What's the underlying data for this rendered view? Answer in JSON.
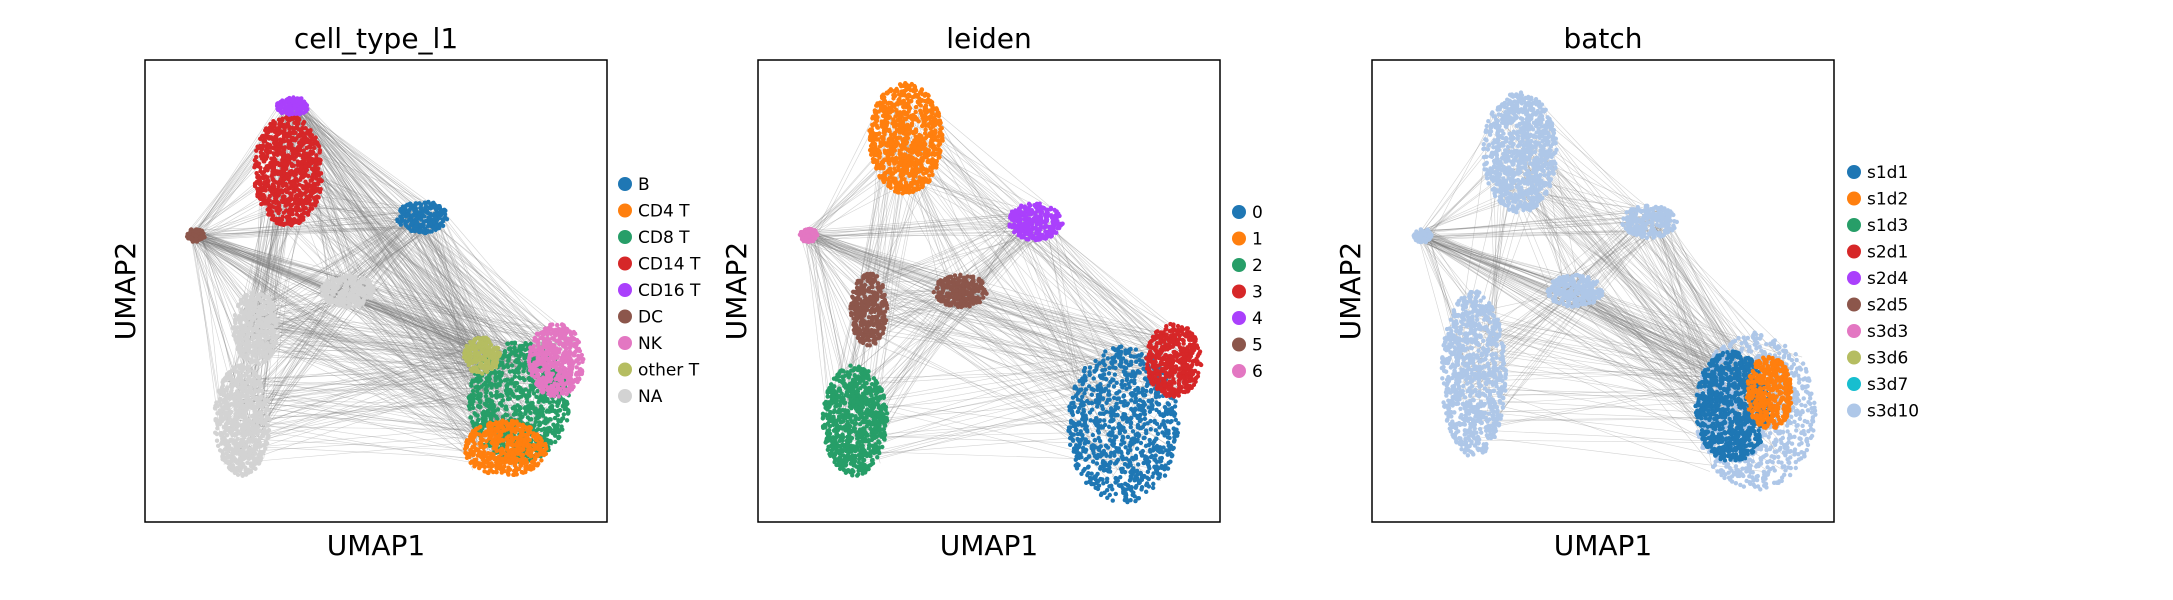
{
  "chart_data": [
    {
      "type": "scatter",
      "title": "cell_type_l1",
      "xlabel": "UMAP1",
      "ylabel": "UMAP2",
      "grid": false,
      "legend_placement": "right",
      "edges_color": "#808080",
      "legend": [
        {
          "label": "B",
          "color": "#1f77b4"
        },
        {
          "label": "CD4 T",
          "color": "#ff7f0e"
        },
        {
          "label": "CD8 T",
          "color": "#279e68"
        },
        {
          "label": "CD14 T",
          "color": "#d62728"
        },
        {
          "label": "CD16 T",
          "color": "#aa40fc"
        },
        {
          "label": "DC",
          "color": "#8c564b"
        },
        {
          "label": "NK",
          "color": "#e377c2"
        },
        {
          "label": "other T",
          "color": "#b5bd61"
        },
        {
          "label": "NA",
          "color": "#d3d3d3"
        }
      ],
      "clusters": [
        {
          "category": "CD16 T",
          "x": 0.32,
          "y": 0.9,
          "rx": 0.035,
          "ry": 0.02
        },
        {
          "category": "CD14 T",
          "x": 0.31,
          "y": 0.76,
          "rx": 0.075,
          "ry": 0.12
        },
        {
          "category": "B",
          "x": 0.6,
          "y": 0.66,
          "rx": 0.055,
          "ry": 0.035
        },
        {
          "category": "DC",
          "x": 0.11,
          "y": 0.62,
          "rx": 0.02,
          "ry": 0.015
        },
        {
          "category": "NA",
          "x": 0.44,
          "y": 0.5,
          "rx": 0.06,
          "ry": 0.035
        },
        {
          "category": "NA",
          "x": 0.24,
          "y": 0.42,
          "rx": 0.05,
          "ry": 0.08
        },
        {
          "category": "NA",
          "x": 0.21,
          "y": 0.22,
          "rx": 0.06,
          "ry": 0.12
        },
        {
          "category": "CD8 T",
          "x": 0.81,
          "y": 0.26,
          "rx": 0.11,
          "ry": 0.13
        },
        {
          "category": "CD4 T",
          "x": 0.78,
          "y": 0.16,
          "rx": 0.09,
          "ry": 0.06
        },
        {
          "category": "NK",
          "x": 0.89,
          "y": 0.35,
          "rx": 0.06,
          "ry": 0.08
        },
        {
          "category": "other T",
          "x": 0.73,
          "y": 0.36,
          "rx": 0.04,
          "ry": 0.04
        }
      ]
    },
    {
      "type": "scatter",
      "title": "leiden",
      "xlabel": "UMAP1",
      "ylabel": "UMAP2",
      "grid": false,
      "legend_placement": "right",
      "edges_color": "#808080",
      "legend": [
        {
          "label": "0",
          "color": "#1f77b4"
        },
        {
          "label": "1",
          "color": "#ff7f0e"
        },
        {
          "label": "2",
          "color": "#279e68"
        },
        {
          "label": "3",
          "color": "#d62728"
        },
        {
          "label": "4",
          "color": "#aa40fc"
        },
        {
          "label": "5",
          "color": "#8c564b"
        },
        {
          "label": "6",
          "color": "#e377c2"
        }
      ],
      "clusters": [
        {
          "category": "1",
          "x": 0.32,
          "y": 0.83,
          "rx": 0.08,
          "ry": 0.12
        },
        {
          "category": "4",
          "x": 0.6,
          "y": 0.65,
          "rx": 0.06,
          "ry": 0.04
        },
        {
          "category": "6",
          "x": 0.11,
          "y": 0.62,
          "rx": 0.02,
          "ry": 0.015
        },
        {
          "category": "5",
          "x": 0.44,
          "y": 0.5,
          "rx": 0.06,
          "ry": 0.035
        },
        {
          "category": "5",
          "x": 0.24,
          "y": 0.46,
          "rx": 0.04,
          "ry": 0.08
        },
        {
          "category": "2",
          "x": 0.21,
          "y": 0.22,
          "rx": 0.07,
          "ry": 0.12
        },
        {
          "category": "0",
          "x": 0.79,
          "y": 0.21,
          "rx": 0.12,
          "ry": 0.17
        },
        {
          "category": "3",
          "x": 0.9,
          "y": 0.35,
          "rx": 0.06,
          "ry": 0.08
        }
      ]
    },
    {
      "type": "scatter",
      "title": "batch",
      "xlabel": "UMAP1",
      "ylabel": "UMAP2",
      "grid": false,
      "legend_placement": "right",
      "edges_color": "#808080",
      "legend": [
        {
          "label": "s1d1",
          "color": "#1f77b4"
        },
        {
          "label": "s1d2",
          "color": "#ff7f0e"
        },
        {
          "label": "s1d3",
          "color": "#279e68"
        },
        {
          "label": "s2d1",
          "color": "#d62728"
        },
        {
          "label": "s2d4",
          "color": "#aa40fc"
        },
        {
          "label": "s2d5",
          "color": "#8c564b"
        },
        {
          "label": "s3d3",
          "color": "#e377c2"
        },
        {
          "label": "s3d6",
          "color": "#b5bd61"
        },
        {
          "label": "s3d7",
          "color": "#17becf"
        },
        {
          "label": "s3d10",
          "color": "#aec7e8"
        }
      ],
      "clusters": [
        {
          "category": "s3d10",
          "x": 0.32,
          "y": 0.8,
          "rx": 0.08,
          "ry": 0.13
        },
        {
          "category": "s3d10",
          "x": 0.6,
          "y": 0.65,
          "rx": 0.06,
          "ry": 0.035
        },
        {
          "category": "s3d10",
          "x": 0.11,
          "y": 0.62,
          "rx": 0.02,
          "ry": 0.015
        },
        {
          "category": "s3d10",
          "x": 0.44,
          "y": 0.5,
          "rx": 0.06,
          "ry": 0.035
        },
        {
          "category": "s3d10",
          "x": 0.22,
          "y": 0.32,
          "rx": 0.07,
          "ry": 0.18
        },
        {
          "category": "s3d10",
          "x": 0.83,
          "y": 0.24,
          "rx": 0.13,
          "ry": 0.17
        },
        {
          "category": "s1d1",
          "x": 0.78,
          "y": 0.25,
          "rx": 0.08,
          "ry": 0.12
        },
        {
          "category": "s1d2",
          "x": 0.86,
          "y": 0.28,
          "rx": 0.05,
          "ry": 0.08
        }
      ]
    }
  ]
}
